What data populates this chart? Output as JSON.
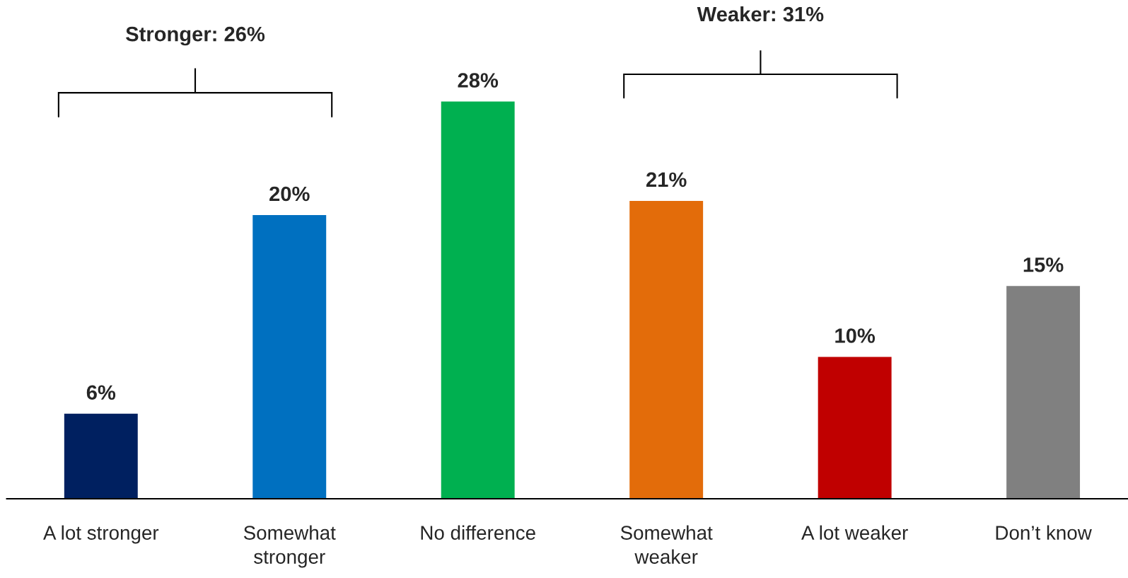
{
  "chart_data": {
    "type": "bar",
    "categories": [
      "A lot stronger",
      "Somewhat\nstronger",
      "No difference",
      "Somewhat\nweaker",
      "A lot weaker",
      "Don’t know"
    ],
    "values": [
      6,
      20,
      28,
      21,
      10,
      15
    ],
    "colors": [
      "#002060",
      "#0070c0",
      "#00b050",
      "#e36c0a",
      "#c00000",
      "#808080"
    ],
    "value_labels": [
      "6%",
      "20%",
      "28%",
      "21%",
      "10%",
      "15%"
    ],
    "annotations": [
      "Stronger: 26%",
      "Weaker: 31%"
    ]
  }
}
